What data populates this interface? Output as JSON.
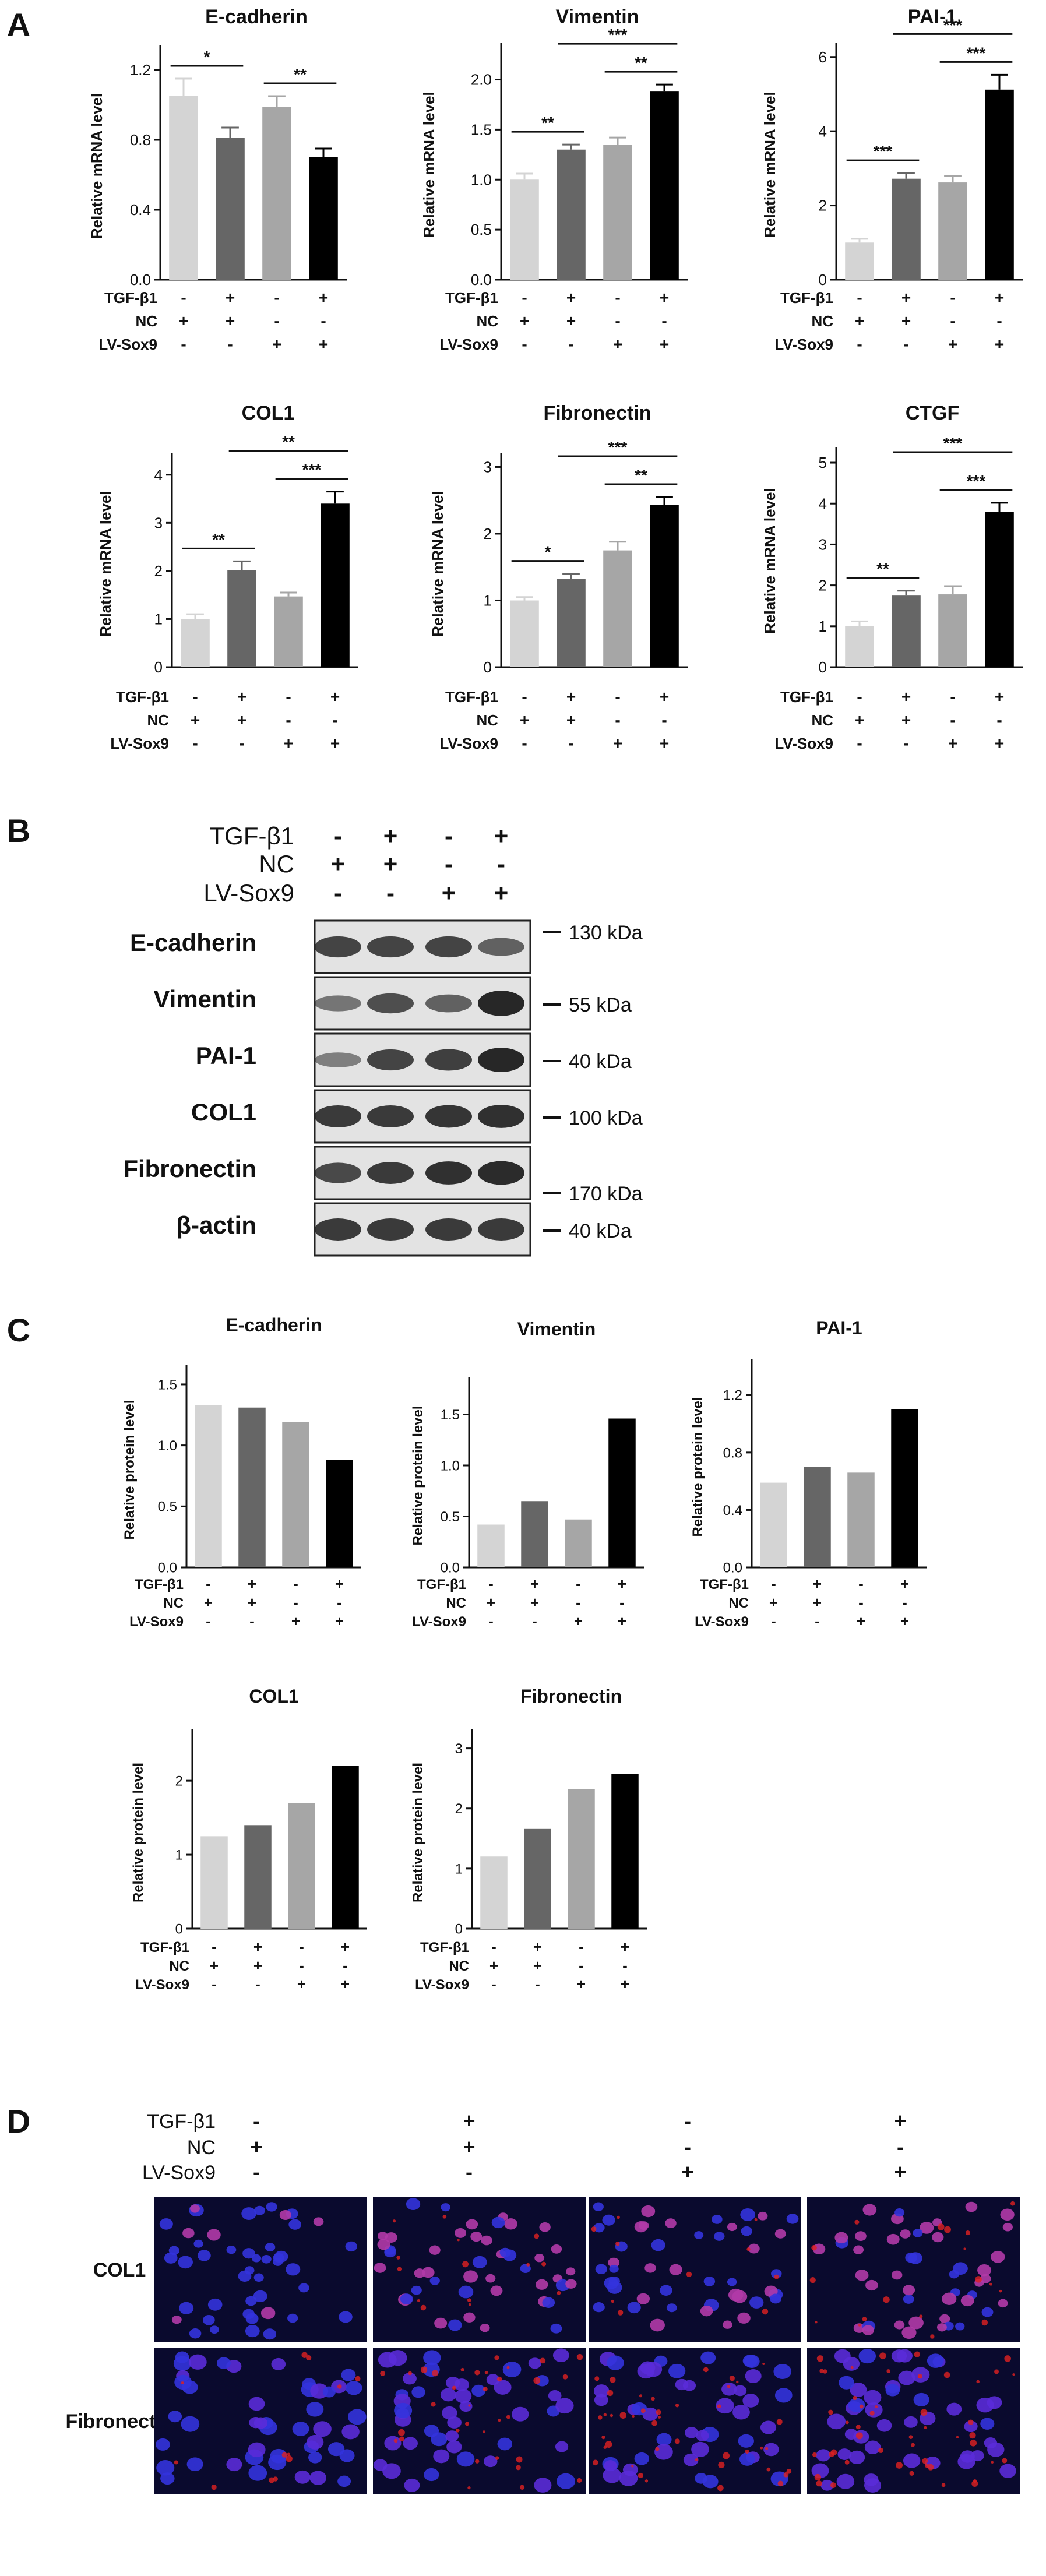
{
  "colors": {
    "bars": [
      "#d4d4d4",
      "#666666",
      "#a6a6a6",
      "#000000"
    ],
    "blot_bg": "#e3e3e3",
    "band": "#1c1c1c",
    "if_bg": "#0a0a2e",
    "nucleus": "#3333dd",
    "stain": "#e02020"
  },
  "panels": {
    "A": "A",
    "B": "B",
    "C": "C",
    "D": "D"
  },
  "conditions": {
    "row_labels": [
      "TGF-β1",
      "NC",
      "LV-Sox9"
    ],
    "signs": [
      [
        "-",
        "+",
        "-",
        "+"
      ],
      [
        "+",
        "+",
        "-",
        "-"
      ],
      [
        "-",
        "-",
        "+",
        "+"
      ]
    ]
  },
  "panel_A": {
    "ylabel": "Relative mRNA level",
    "charts": [
      {
        "title": "E-cadherin",
        "yticks": [
          "0.0",
          "0.4",
          "0.8",
          "1.2"
        ]
      },
      {
        "title": "Vimentin",
        "yticks": [
          "0.0",
          "0.5",
          "1.0",
          "1.5",
          "2.0"
        ]
      },
      {
        "title": "PAI-1",
        "yticks": [
          "0",
          "2",
          "4",
          "6"
        ]
      },
      {
        "title": "COL1",
        "yticks": [
          "0",
          "1",
          "2",
          "3",
          "4"
        ]
      },
      {
        "title": "Fibronectin",
        "yticks": [
          "0",
          "1",
          "2",
          "3"
        ]
      },
      {
        "title": "CTGF",
        "yticks": [
          "0",
          "1",
          "2",
          "3",
          "4",
          "5"
        ]
      }
    ]
  },
  "panel_B": {
    "bands": [
      "E-cadherin",
      "Vimentin",
      "PAI-1",
      "COL1",
      "Fibronectin",
      "β-actin"
    ],
    "markers": [
      "130 kDa",
      "55 kDa",
      "40 kDa",
      "100 kDa",
      "170 kDa",
      "40 kDa"
    ]
  },
  "panel_C": {
    "ylabel": "Relative protein level",
    "charts": [
      {
        "title": "E-cadherin",
        "yticks": [
          "0.0",
          "0.5",
          "1.0",
          "1.5"
        ]
      },
      {
        "title": "Vimentin",
        "yticks": [
          "0.0",
          "0.5",
          "1.0",
          "1.5"
        ]
      },
      {
        "title": "PAI-1",
        "yticks": [
          "0.0",
          "0.4",
          "0.8",
          "1.2"
        ]
      },
      {
        "title": "COL1",
        "yticks": [
          "0",
          "1",
          "2"
        ]
      },
      {
        "title": "Fibronectin",
        "yticks": [
          "0",
          "1",
          "2",
          "3"
        ]
      }
    ]
  },
  "panel_D": {
    "rows": [
      "COL1",
      "Fibronectin"
    ]
  },
  "chart_data": [
    {
      "panel": "A",
      "type": "bar",
      "title": "E-cadherin",
      "ylabel": "Relative mRNA level",
      "ylim": [
        0,
        1.3
      ],
      "values": [
        1.05,
        0.81,
        0.99,
        0.7
      ],
      "errors": [
        0.1,
        0.06,
        0.06,
        0.05
      ],
      "significance": [
        {
          "pair": [
            1,
            2
          ],
          "label": "*"
        },
        {
          "pair": [
            3,
            4
          ],
          "label": "**"
        }
      ]
    },
    {
      "panel": "A",
      "type": "bar",
      "title": "Vimentin",
      "ylabel": "Relative mRNA level",
      "ylim": [
        0,
        2.3
      ],
      "values": [
        1.0,
        1.3,
        1.35,
        1.88
      ],
      "errors": [
        0.06,
        0.05,
        0.07,
        0.07
      ],
      "significance": [
        {
          "pair": [
            1,
            2
          ],
          "label": "**"
        },
        {
          "pair": [
            3,
            4
          ],
          "label": "**"
        },
        {
          "pair": [
            2,
            4
          ],
          "label": "***"
        }
      ]
    },
    {
      "panel": "A",
      "type": "bar",
      "title": "PAI-1",
      "ylabel": "Relative mRNA level",
      "ylim": [
        0,
        6.2
      ],
      "values": [
        1.0,
        2.72,
        2.62,
        5.12
      ],
      "errors": [
        0.1,
        0.15,
        0.18,
        0.4
      ],
      "significance": [
        {
          "pair": [
            1,
            2
          ],
          "label": "***"
        },
        {
          "pair": [
            3,
            4
          ],
          "label": "***"
        },
        {
          "pair": [
            2,
            4
          ],
          "label": "***"
        }
      ]
    },
    {
      "panel": "A",
      "type": "bar",
      "title": "COL1",
      "ylabel": "Relative mRNA level",
      "ylim": [
        0,
        4.3
      ],
      "values": [
        1.0,
        2.02,
        1.47,
        3.4
      ],
      "errors": [
        0.1,
        0.18,
        0.08,
        0.25
      ],
      "significance": [
        {
          "pair": [
            1,
            2
          ],
          "label": "**"
        },
        {
          "pair": [
            3,
            4
          ],
          "label": "***"
        },
        {
          "pair": [
            2,
            4
          ],
          "label": "**"
        }
      ]
    },
    {
      "panel": "A",
      "type": "bar",
      "title": "Fibronectin",
      "ylabel": "Relative mRNA level",
      "ylim": [
        0,
        3.1
      ],
      "values": [
        1.0,
        1.32,
        1.75,
        2.43
      ],
      "errors": [
        0.05,
        0.08,
        0.13,
        0.12
      ],
      "significance": [
        {
          "pair": [
            1,
            2
          ],
          "label": "*"
        },
        {
          "pair": [
            3,
            4
          ],
          "label": "**"
        },
        {
          "pair": [
            2,
            4
          ],
          "label": "***"
        }
      ]
    },
    {
      "panel": "A",
      "type": "bar",
      "title": "CTGF",
      "ylabel": "Relative mRNA level",
      "ylim": [
        0,
        5.2
      ],
      "values": [
        1.0,
        1.75,
        1.78,
        3.8
      ],
      "errors": [
        0.12,
        0.12,
        0.2,
        0.22
      ],
      "significance": [
        {
          "pair": [
            1,
            2
          ],
          "label": "**"
        },
        {
          "pair": [
            3,
            4
          ],
          "label": "***"
        },
        {
          "pair": [
            2,
            4
          ],
          "label": "***"
        }
      ]
    },
    {
      "panel": "C",
      "type": "bar",
      "title": "E-cadherin",
      "ylabel": "Relative protein level",
      "ylim": [
        0,
        1.6
      ],
      "values": [
        1.33,
        1.31,
        1.19,
        0.88
      ]
    },
    {
      "panel": "C",
      "type": "bar",
      "title": "Vimentin",
      "ylabel": "Relative protein level",
      "ylim": [
        0,
        1.8
      ],
      "values": [
        0.42,
        0.65,
        0.47,
        1.46
      ]
    },
    {
      "panel": "C",
      "type": "bar",
      "title": "PAI-1",
      "ylabel": "Relative protein level",
      "ylim": [
        0,
        1.4
      ],
      "values": [
        0.59,
        0.7,
        0.66,
        1.1
      ]
    },
    {
      "panel": "C",
      "type": "bar",
      "title": "COL1",
      "ylabel": "Relative protein level",
      "ylim": [
        0,
        2.6
      ],
      "values": [
        1.25,
        1.4,
        1.7,
        2.2
      ]
    },
    {
      "panel": "C",
      "type": "bar",
      "title": "Fibronectin",
      "ylabel": "Relative protein level",
      "ylim": [
        0,
        3.2
      ],
      "values": [
        1.2,
        1.66,
        2.32,
        2.57
      ]
    }
  ]
}
